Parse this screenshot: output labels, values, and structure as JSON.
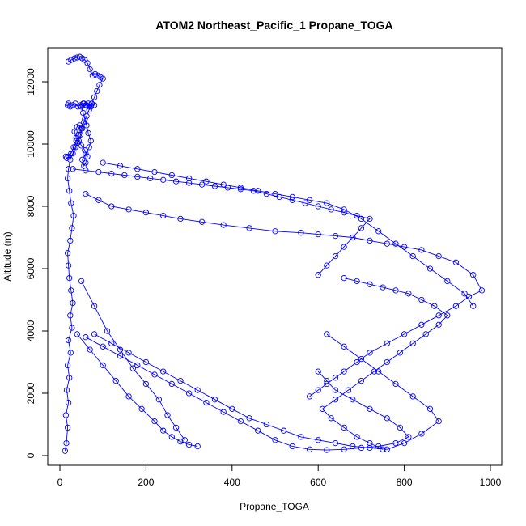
{
  "chart_data": {
    "type": "line",
    "title": "ATOM2 Northeast_Pacific_1 Propane_TOGA",
    "xlabel": "Propane_TOGA",
    "ylabel": "Altitude (m)",
    "xlim": [
      0,
      1000
    ],
    "ylim": [
      0,
      12800
    ],
    "xticks": [
      "0",
      "200",
      "400",
      "600",
      "800",
      "1000"
    ],
    "yticks": [
      "0",
      "2000",
      "4000",
      "6000",
      "8000",
      "10000",
      "12000"
    ],
    "grid": false,
    "series_color": "#0000ff",
    "marker": "open-circle",
    "series": [
      {
        "x": [
          12,
          15,
          18,
          14,
          20,
          16,
          22,
          18,
          25,
          20,
          28,
          24,
          30,
          26,
          22,
          20,
          18,
          24,
          28,
          32,
          26,
          22,
          18,
          20,
          24,
          30,
          36,
          42,
          38,
          34,
          40,
          46,
          52,
          48,
          44,
          50,
          58,
          64,
          60,
          56,
          52,
          60,
          68,
          72,
          66,
          62,
          58,
          54,
          50,
          56,
          62,
          68,
          74,
          80,
          72,
          66,
          60,
          54,
          48,
          42,
          36,
          30,
          24,
          20,
          18
        ],
        "y": [
          150,
          400,
          900,
          1300,
          1700,
          2100,
          2500,
          2900,
          3300,
          3700,
          4100,
          4500,
          4900,
          5300,
          5700,
          6100,
          6500,
          6900,
          7300,
          7700,
          8100,
          8500,
          8900,
          9200,
          9500,
          9700,
          9900,
          10050,
          10200,
          10400,
          10550,
          10600,
          10500,
          10300,
          10100,
          9950,
          9800,
          9600,
          9400,
          9300,
          9500,
          9700,
          9900,
          10100,
          10350,
          10600,
          10800,
          11000,
          11200,
          11300,
          11250,
          11200,
          11300,
          11250,
          11200,
          11300,
          11250,
          11300,
          11250,
          11200,
          11300,
          11250,
          11200,
          11300,
          11250
        ]
      },
      {
        "x": [
          20,
          26,
          34,
          40,
          46,
          52,
          58,
          64,
          70,
          76,
          82,
          88,
          94,
          100,
          92,
          86,
          80,
          74,
          68,
          62,
          56,
          50,
          44,
          38,
          32,
          26,
          20,
          16,
          14
        ],
        "y": [
          12650,
          12700,
          12750,
          12780,
          12800,
          12750,
          12700,
          12600,
          12400,
          12200,
          12250,
          12200,
          12150,
          12100,
          11900,
          11700,
          11500,
          11300,
          11100,
          10900,
          10700,
          10500,
          10300,
          10100,
          9900,
          9700,
          9600,
          9550,
          9600
        ]
      },
      {
        "x": [
          60,
          90,
          120,
          160,
          200,
          240,
          280,
          330,
          380,
          440,
          500,
          560,
          600,
          640,
          680,
          720,
          760,
          800,
          840,
          880,
          920,
          960,
          980,
          950,
          920,
          880,
          840,
          800,
          760,
          720,
          690,
          660,
          640,
          620,
          600,
          580
        ],
        "y": [
          8400,
          8200,
          8000,
          7900,
          7800,
          7700,
          7600,
          7500,
          7400,
          7300,
          7200,
          7150,
          7100,
          7050,
          7000,
          6900,
          6800,
          6700,
          6600,
          6400,
          6200,
          5800,
          5300,
          5100,
          4800,
          4500,
          4200,
          3900,
          3600,
          3300,
          3000,
          2700,
          2500,
          2300,
          2100,
          1900
        ]
      },
      {
        "x": [
          100,
          140,
          180,
          220,
          260,
          300,
          340,
          380,
          420,
          460,
          500,
          540,
          580,
          620,
          660,
          700,
          740,
          780,
          820,
          860,
          900,
          940,
          960
        ],
        "y": [
          9400,
          9300,
          9200,
          9100,
          9000,
          8900,
          8800,
          8700,
          8600,
          8500,
          8400,
          8300,
          8200,
          8100,
          7900,
          7600,
          7200,
          6800,
          6400,
          6000,
          5600,
          5200,
          4800
        ]
      },
      {
        "x": [
          60,
          100,
          140,
          180,
          220,
          260,
          300,
          340,
          380,
          420,
          460,
          500,
          540,
          580,
          620,
          660,
          700,
          740,
          780,
          810,
          790,
          760,
          720,
          680,
          640,
          620,
          600
        ],
        "y": [
          3800,
          3500,
          3200,
          2900,
          2600,
          2300,
          2000,
          1700,
          1400,
          1100,
          800,
          500,
          300,
          200,
          180,
          200,
          250,
          300,
          400,
          600,
          900,
          1200,
          1500,
          1800,
          2100,
          2400,
          2700
        ]
      },
      {
        "x": [
          80,
          120,
          160,
          200,
          240,
          280,
          320,
          360,
          400,
          440,
          480,
          520,
          560,
          600,
          640,
          680,
          720,
          760,
          800,
          840,
          880,
          860,
          820,
          780,
          740,
          700,
          660,
          620
        ],
        "y": [
          3900,
          3600,
          3300,
          3000,
          2700,
          2400,
          2100,
          1800,
          1500,
          1200,
          1000,
          800,
          600,
          500,
          400,
          300,
          250,
          200,
          400,
          700,
          1100,
          1500,
          1900,
          2300,
          2700,
          3100,
          3500,
          3900
        ]
      },
      {
        "x": [
          40,
          70,
          100,
          130,
          160,
          190,
          220,
          240,
          260,
          280,
          300,
          320
        ],
        "y": [
          3900,
          3400,
          2900,
          2400,
          1900,
          1500,
          1100,
          800,
          600,
          450,
          350,
          300
        ]
      },
      {
        "x": [
          50,
          80,
          110,
          140,
          170,
          200,
          230,
          250,
          270,
          290
        ],
        "y": [
          5600,
          4800,
          4000,
          3400,
          2800,
          2300,
          1800,
          1300,
          900,
          500
        ]
      },
      {
        "x": [
          660,
          690,
          720,
          750,
          780,
          810,
          840,
          870,
          900,
          880,
          850,
          820,
          790,
          760,
          730,
          700,
          670,
          640,
          610,
          630,
          660,
          690,
          720,
          750
        ],
        "y": [
          5700,
          5600,
          5500,
          5400,
          5300,
          5200,
          5000,
          4800,
          4500,
          4200,
          3900,
          3600,
          3300,
          3000,
          2700,
          2400,
          2100,
          1800,
          1500,
          1200,
          900,
          600,
          400,
          200
        ]
      },
      {
        "x": [
          30,
          60,
          90,
          120,
          150,
          180,
          210,
          240,
          270,
          300,
          330,
          360,
          390,
          420,
          450,
          480,
          510,
          540,
          570,
          600,
          630,
          660,
          690,
          720,
          700,
          680,
          660,
          640,
          620,
          600
        ],
        "y": [
          9200,
          9150,
          9100,
          9050,
          9000,
          8950,
          8900,
          8850,
          8800,
          8750,
          8700,
          8650,
          8600,
          8550,
          8500,
          8400,
          8300,
          8200,
          8100,
          8000,
          7900,
          7800,
          7700,
          7600,
          7300,
          7000,
          6700,
          6400,
          6100,
          5800
        ]
      }
    ]
  }
}
